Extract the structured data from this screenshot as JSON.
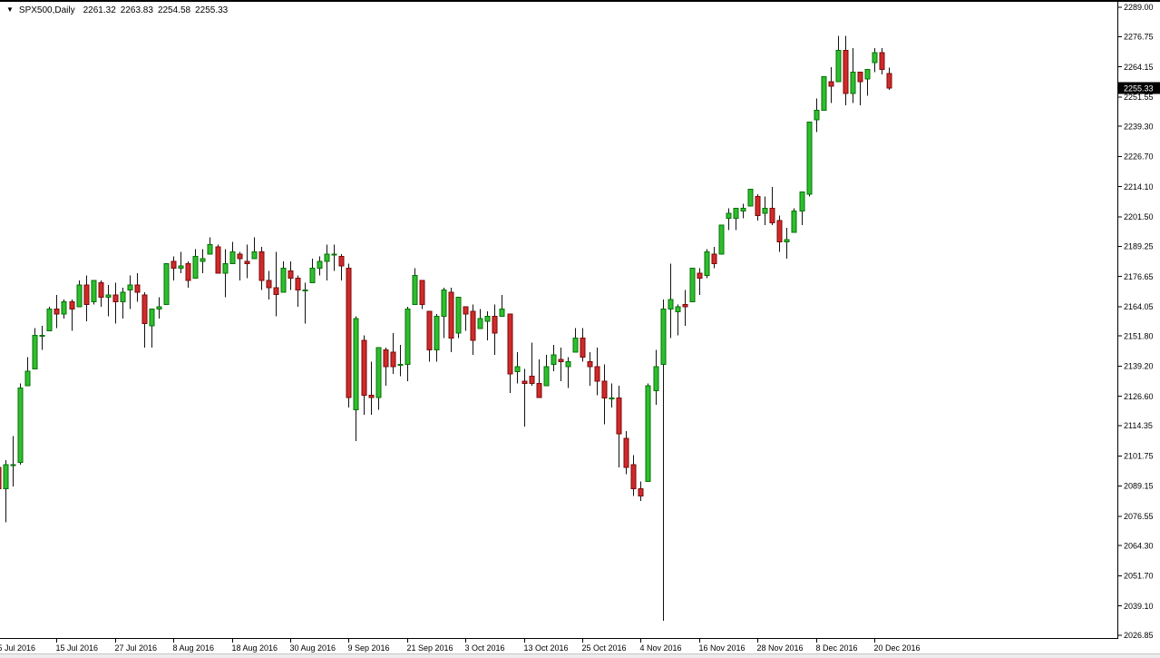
{
  "quote_bar": {
    "dropdown_icon": "▼",
    "symbol": "SPX500,Daily",
    "open": "2261.32",
    "high": "2263.83",
    "low": "2254.58",
    "close": "2255.33"
  },
  "chart_data": {
    "type": "candlestick",
    "title": "SPX500 Daily",
    "symbol": "SPX500",
    "timeframe": "Daily",
    "ylim": [
      2026.85,
      2289.0
    ],
    "price_axis_ticks": [
      2289.0,
      2276.75,
      2264.15,
      2251.55,
      2239.3,
      2226.7,
      2214.1,
      2201.5,
      2189.25,
      2176.65,
      2164.05,
      2151.8,
      2139.2,
      2126.6,
      2114.35,
      2101.75,
      2089.15,
      2076.55,
      2064.3,
      2051.7,
      2039.1,
      2026.85
    ],
    "current_price": 2255.33,
    "time_axis_ticks": [
      {
        "label": "5 Jul 2016",
        "index": 0
      },
      {
        "label": "15 Jul 2016",
        "index": 8
      },
      {
        "label": "27 Jul 2016",
        "index": 16
      },
      {
        "label": "8 Aug 2016",
        "index": 24
      },
      {
        "label": "18 Aug 2016",
        "index": 32
      },
      {
        "label": "30 Aug 2016",
        "index": 40
      },
      {
        "label": "9 Sep 2016",
        "index": 48
      },
      {
        "label": "21 Sep 2016",
        "index": 56
      },
      {
        "label": "3 Oct 2016",
        "index": 64
      },
      {
        "label": "13 Oct 2016",
        "index": 72
      },
      {
        "label": "25 Oct 2016",
        "index": 80
      },
      {
        "label": "4 Nov 2016",
        "index": 88
      },
      {
        "label": "16 Nov 2016",
        "index": 96
      },
      {
        "label": "28 Nov 2016",
        "index": 104
      },
      {
        "label": "8 Dec 2016",
        "index": 112
      },
      {
        "label": "20 Dec 2016",
        "index": 120
      }
    ],
    "colors": {
      "background": "#ffffff",
      "bull_fill": "#2ebe2e",
      "bull_border": "#077007",
      "bear_fill": "#d02a2a",
      "bear_border": "#7a0a0a",
      "wick": "#111111",
      "axis": "#000000",
      "price_tag_bg": "#000000",
      "price_tag_text": "#ffffff"
    },
    "candles": [
      [
        "5 Jul 2016",
        2097,
        2100,
        2081,
        2088
      ],
      [
        "6 Jul 2016",
        2088,
        2100,
        2074,
        2098
      ],
      [
        "7 Jul 2016",
        2098,
        2110,
        2089,
        2098
      ],
      [
        "8 Jul 2016",
        2099,
        2132,
        2098,
        2130
      ],
      [
        "11 Jul 2016",
        2131,
        2143,
        2131,
        2137
      ],
      [
        "12 Jul 2016",
        2138,
        2155,
        2138,
        2152
      ],
      [
        "13 Jul 2016",
        2152,
        2156,
        2146,
        2152
      ],
      [
        "14 Jul 2016",
        2154,
        2164,
        2154,
        2163
      ],
      [
        "15 Jul 2016",
        2163,
        2169,
        2155,
        2161
      ],
      [
        "18 Jul 2016",
        2161,
        2167,
        2159,
        2166
      ],
      [
        "19 Jul 2016",
        2166,
        2167,
        2154,
        2163
      ],
      [
        "20 Jul 2016",
        2164,
        2175,
        2164,
        2173
      ],
      [
        "21 Jul 2016",
        2173,
        2177,
        2158,
        2165
      ],
      [
        "22 Jul 2016",
        2166,
        2175,
        2165,
        2175
      ],
      [
        "25 Jul 2016",
        2174,
        2175,
        2164,
        2168
      ],
      [
        "26 Jul 2016",
        2168,
        2173,
        2160,
        2169
      ],
      [
        "27 Jul 2016",
        2169,
        2174,
        2157,
        2166
      ],
      [
        "28 Jul 2016",
        2166,
        2172,
        2159,
        2170
      ],
      [
        "29 Jul 2016",
        2171,
        2177,
        2163,
        2173
      ],
      [
        "1 Aug 2016",
        2173,
        2178,
        2166,
        2170
      ],
      [
        "2 Aug 2016",
        2169,
        2170,
        2147,
        2157
      ],
      [
        "3 Aug 2016",
        2156,
        2163,
        2147,
        2163
      ],
      [
        "4 Aug 2016",
        2163,
        2168,
        2159,
        2164
      ],
      [
        "5 Aug 2016",
        2165,
        2182,
        2165,
        2182
      ],
      [
        "8 Aug 2016",
        2183,
        2185,
        2175,
        2180
      ],
      [
        "9 Aug 2016",
        2180,
        2187,
        2178,
        2181
      ],
      [
        "10 Aug 2016",
        2182,
        2183,
        2172,
        2175
      ],
      [
        "11 Aug 2016",
        2176,
        2188,
        2176,
        2185
      ],
      [
        "12 Aug 2016",
        2183,
        2188,
        2178,
        2184
      ],
      [
        "15 Aug 2016",
        2186,
        2193,
        2186,
        2190
      ],
      [
        "16 Aug 2016",
        2189,
        2190,
        2178,
        2178
      ],
      [
        "17 Aug 2016",
        2178,
        2188,
        2168,
        2182
      ],
      [
        "18 Aug 2016",
        2182,
        2191,
        2182,
        2187
      ],
      [
        "19 Aug 2016",
        2186,
        2187,
        2175,
        2184
      ],
      [
        "22 Aug 2016",
        2183,
        2190,
        2176,
        2182
      ],
      [
        "23 Aug 2016",
        2184,
        2193,
        2184,
        2187
      ],
      [
        "24 Aug 2016",
        2187,
        2189,
        2171,
        2175
      ],
      [
        "25 Aug 2016",
        2175,
        2179,
        2167,
        2172
      ],
      [
        "26 Aug 2016",
        2172,
        2187,
        2160,
        2169
      ],
      [
        "29 Aug 2016",
        2170,
        2183,
        2170,
        2180
      ],
      [
        "30 Aug 2016",
        2179,
        2183,
        2171,
        2176
      ],
      [
        "31 Aug 2016",
        2176,
        2177,
        2164,
        2171
      ],
      [
        "1 Sep 2016",
        2171,
        2174,
        2157,
        2171
      ],
      [
        "2 Sep 2016",
        2174,
        2184,
        2174,
        2180
      ],
      [
        "5 Sep 2016",
        2180,
        2185,
        2177,
        2183
      ],
      [
        "6 Sep 2016",
        2183,
        2190,
        2175,
        2186
      ],
      [
        "7 Sep 2016",
        2186,
        2190,
        2179,
        2186
      ],
      [
        "8 Sep 2016",
        2185,
        2186,
        2175,
        2181
      ],
      [
        "9 Sep 2016",
        2180,
        2182,
        2122,
        2126
      ],
      [
        "12 Sep 2016",
        2121,
        2160,
        2108,
        2159
      ],
      [
        "13 Sep 2016",
        2150,
        2152,
        2119,
        2127
      ],
      [
        "14 Sep 2016",
        2127,
        2141,
        2119,
        2126
      ],
      [
        "15 Sep 2016",
        2126,
        2147,
        2121,
        2147
      ],
      [
        "16 Sep 2016",
        2146,
        2147,
        2131,
        2139
      ],
      [
        "19 Sep 2016",
        2145,
        2153,
        2136,
        2139
      ],
      [
        "20 Sep 2016",
        2140,
        2148,
        2135,
        2140
      ],
      [
        "21 Sep 2016",
        2140,
        2164,
        2133,
        2163
      ],
      [
        "22 Sep 2016",
        2165,
        2180,
        2165,
        2177
      ],
      [
        "23 Sep 2016",
        2175,
        2175,
        2163,
        2165
      ],
      [
        "26 Sep 2016",
        2162,
        2162,
        2141,
        2146
      ],
      [
        "27 Sep 2016",
        2146,
        2161,
        2141,
        2160
      ],
      [
        "28 Sep 2016",
        2160,
        2172,
        2151,
        2171
      ],
      [
        "29 Sep 2016",
        2170,
        2172,
        2145,
        2151
      ],
      [
        "30 Sep 2016",
        2153,
        2168,
        2151,
        2168
      ],
      [
        "3 Oct 2016",
        2164,
        2164,
        2154,
        2161
      ],
      [
        "4 Oct 2016",
        2162,
        2165,
        2144,
        2150
      ],
      [
        "5 Oct 2016",
        2155,
        2163,
        2155,
        2159
      ],
      [
        "6 Oct 2016",
        2158,
        2162,
        2150,
        2160
      ],
      [
        "7 Oct 2016",
        2160,
        2165,
        2144,
        2153
      ],
      [
        "10 Oct 2016",
        2160,
        2169,
        2160,
        2163
      ],
      [
        "11 Oct 2016",
        2161,
        2161,
        2128,
        2136
      ],
      [
        "12 Oct 2016",
        2137,
        2145,
        2132,
        2139
      ],
      [
        "13 Oct 2016",
        2133,
        2138,
        2114,
        2132
      ],
      [
        "14 Oct 2016",
        2135,
        2149,
        2131,
        2132
      ],
      [
        "17 Oct 2016",
        2132,
        2142,
        2126,
        2126
      ],
      [
        "18 Oct 2016",
        2131,
        2144,
        2131,
        2139
      ],
      [
        "19 Oct 2016",
        2140,
        2148,
        2137,
        2144
      ],
      [
        "20 Oct 2016",
        2142,
        2147,
        2133,
        2141
      ],
      [
        "21 Oct 2016",
        2139,
        2143,
        2130,
        2141
      ],
      [
        "24 Oct 2016",
        2145,
        2155,
        2145,
        2151
      ],
      [
        "25 Oct 2016",
        2151,
        2155,
        2141,
        2143
      ],
      [
        "26 Oct 2016",
        2141,
        2145,
        2131,
        2139
      ],
      [
        "27 Oct 2016",
        2139,
        2147,
        2127,
        2133
      ],
      [
        "28 Oct 2016",
        2133,
        2140,
        2115,
        2126
      ],
      [
        "31 Oct 2016",
        2126,
        2132,
        2122,
        2126
      ],
      [
        "1 Nov 2016",
        2126,
        2131,
        2097,
        2111
      ],
      [
        "2 Nov 2016",
        2109,
        2112,
        2094,
        2097
      ],
      [
        "3 Nov 2016",
        2098,
        2102,
        2085,
        2088
      ],
      [
        "4 Nov 2016",
        2088,
        2091,
        2083,
        2085
      ],
      [
        "7 Nov 2016",
        2091,
        2132,
        2091,
        2131
      ],
      [
        "8 Nov 2016",
        2129,
        2146,
        2123,
        2139
      ],
      [
        "9 Nov 2016",
        2140,
        2167,
        2033,
        2163
      ],
      [
        "10 Nov 2016",
        2163,
        2182,
        2151,
        2167
      ],
      [
        "11 Nov 2016",
        2162,
        2165,
        2152,
        2164
      ],
      [
        "14 Nov 2016",
        2165,
        2171,
        2156,
        2164
      ],
      [
        "15 Nov 2016",
        2166,
        2180,
        2166,
        2180
      ],
      [
        "16 Nov 2016",
        2178,
        2180,
        2169,
        2176
      ],
      [
        "17 Nov 2016",
        2177,
        2188,
        2176,
        2187
      ],
      [
        "18 Nov 2016",
        2186,
        2189,
        2180,
        2182
      ],
      [
        "21 Nov 2016",
        2186,
        2198,
        2186,
        2198
      ],
      [
        "22 Nov 2016",
        2201,
        2205,
        2196,
        2203
      ],
      [
        "23 Nov 2016",
        2201,
        2205,
        2196,
        2205
      ],
      [
        "24 Nov 2016",
        2204,
        2207,
        2201,
        2205
      ],
      [
        "25 Nov 2016",
        2206,
        2213,
        2206,
        2213
      ],
      [
        "28 Nov 2016",
        2210,
        2211,
        2200,
        2202
      ],
      [
        "29 Nov 2016",
        2203,
        2210,
        2198,
        2205
      ],
      [
        "30 Nov 2016",
        2205,
        2214,
        2198,
        2199
      ],
      [
        "1 Dec 2016",
        2200,
        2202,
        2187,
        2191
      ],
      [
        "2 Dec 2016",
        2191,
        2197,
        2184,
        2192
      ],
      [
        "5 Dec 2016",
        2195,
        2205,
        2195,
        2204
      ],
      [
        "6 Dec 2016",
        2204,
        2212,
        2198,
        2212
      ],
      [
        "7 Dec 2016",
        2211,
        2241,
        2210,
        2241
      ],
      [
        "8 Dec 2016",
        2242,
        2251,
        2237,
        2246
      ],
      [
        "9 Dec 2016",
        2246,
        2260,
        2246,
        2260
      ],
      [
        "12 Dec 2016",
        2258,
        2264,
        2249,
        2256
      ],
      [
        "13 Dec 2016",
        2258,
        2277,
        2258,
        2271
      ],
      [
        "14 Dec 2016",
        2271,
        2277,
        2248,
        2253
      ],
      [
        "15 Dec 2016",
        2253,
        2272,
        2249,
        2262
      ],
      [
        "16 Dec 2016",
        2262,
        2262,
        2248,
        2258
      ],
      [
        "19 Dec 2016",
        2259,
        2263,
        2252,
        2263
      ],
      [
        "20 Dec 2016",
        2266,
        2272,
        2262,
        2270
      ],
      [
        "21 Dec 2016",
        2270,
        2272,
        2261,
        2263
      ],
      [
        "22 Dec 2016",
        2261.32,
        2263.83,
        2254.58,
        2255.33
      ]
    ]
  }
}
